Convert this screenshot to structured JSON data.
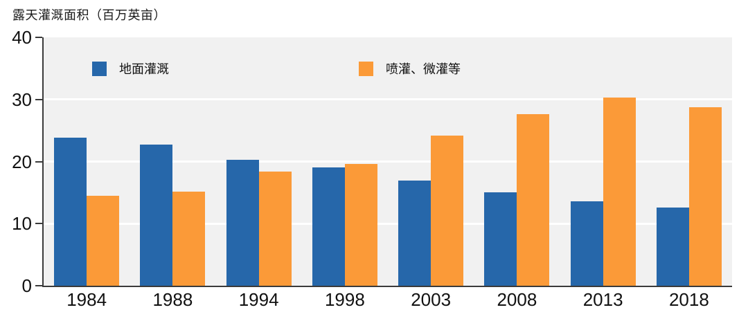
{
  "chart_data": {
    "type": "bar",
    "title": "露天灌溉面积（百万英亩）",
    "categories": [
      "1984",
      "1988",
      "1994",
      "1998",
      "2003",
      "2008",
      "2013",
      "2018"
    ],
    "series": [
      {
        "name": "地面灌溉",
        "color": "#2667AA",
        "values": [
          23.9,
          22.7,
          20.3,
          19.1,
          16.9,
          15.0,
          13.6,
          12.6
        ]
      },
      {
        "name": "喷灌、微灌等",
        "color": "#FB9A38",
        "values": [
          14.5,
          15.1,
          18.4,
          19.6,
          24.2,
          27.6,
          30.3,
          28.8
        ]
      }
    ],
    "xlabel": "",
    "ylabel": "露天灌溉面积（百万英亩）",
    "ylim": [
      0,
      40
    ],
    "yticks": [
      0,
      10,
      20,
      30,
      40
    ],
    "grid": true,
    "grid_color": "#FFFFFF",
    "plot_background": "#F1F1F1",
    "axis_color": "#3A3A3A",
    "legend_position": "top-inside"
  }
}
